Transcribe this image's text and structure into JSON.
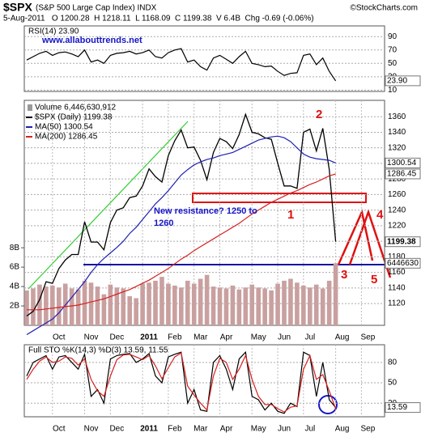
{
  "header": {
    "title": "$SPX",
    "subtitle": "(S&P 500 Large Cap Index) INDX",
    "source": "©StockCharts.com",
    "quote": "5-Aug-2011   O 1200.28  H 1218.11  L 1168.09  C 1199.38  V 6.4B  Chg -0.69 (-0.06%)"
  },
  "chart_data": [
    {
      "type": "line",
      "title": "RSI(14) 23.90",
      "annotations": [
        {
          "text": "www.allabouttrends.net",
          "color": "#1414c8"
        }
      ],
      "ylim": [
        8,
        106
      ],
      "yticks": [
        90,
        70,
        50,
        30,
        10
      ],
      "grid": true,
      "series": [
        {
          "color": "#000000",
          "end_label": "23.90",
          "values": [
            55,
            60,
            65,
            68,
            62,
            66,
            67,
            64,
            60,
            70,
            52,
            55,
            50,
            62,
            65,
            66,
            68,
            64,
            66,
            70,
            60,
            58,
            66,
            70,
            72,
            52,
            55,
            45,
            40,
            58,
            62,
            56,
            50,
            60,
            68,
            50,
            48,
            45,
            46,
            38,
            32,
            35,
            36,
            62,
            64,
            48,
            58,
            38,
            23.9,
            null,
            null,
            null,
            null,
            null,
            null,
            null
          ]
        }
      ]
    },
    {
      "type": "line",
      "categories": [
        null,
        null,
        null,
        null,
        "Oct",
        null,
        null,
        null,
        null,
        "Nov",
        null,
        null,
        null,
        "Dec",
        null,
        null,
        null,
        null,
        "2011",
        null,
        null,
        null,
        "Feb",
        null,
        null,
        null,
        "Mar",
        null,
        null,
        null,
        "Apr",
        null,
        null,
        null,
        null,
        "May",
        null,
        null,
        null,
        "Jun",
        null,
        null,
        null,
        "Jul",
        null,
        null,
        null,
        null,
        "Aug",
        null,
        null,
        null,
        "Sep",
        null,
        null,
        null
      ],
      "ylim": [
        1092,
        1381
      ],
      "yticks": [
        1360,
        1340,
        1320,
        1300,
        1280,
        1260,
        1240,
        1220,
        1200,
        1180,
        1160,
        1140,
        1120
      ],
      "grid": true,
      "y2lim": [
        0,
        23.2
      ],
      "y2ticks": [
        {
          "value": 8,
          "label": "8B"
        },
        {
          "value": 6,
          "label": "6B"
        },
        {
          "value": 4,
          "label": "4B"
        },
        {
          "value": 2,
          "label": "2B"
        }
      ],
      "annotations": [
        {
          "text": "2",
          "color": "#e01010"
        },
        {
          "text": "1",
          "color": "#e01010"
        },
        {
          "text": "3",
          "color": "#e01010"
        },
        {
          "text": "4",
          "color": "#e01010"
        },
        {
          "text": "5",
          "color": "#e01010"
        },
        {
          "text": "New resistance? 1250 to 1260",
          "color": "#1414c8"
        }
      ],
      "series": [
        {
          "name": "Volume 6,446,630,912",
          "type": "bar",
          "axis": "y2",
          "color": "#c9a0a0",
          "end_label": "6446630",
          "values": [
            3.6,
            3.8,
            4.2,
            4.0,
            4.1,
            3.9,
            4.3,
            3.8,
            3.7,
            4.6,
            4.4,
            4.0,
            3.2,
            4.2,
            3.9,
            3.8,
            3.0,
            2.8,
            4.3,
            4.4,
            4.6,
            5.0,
            4.3,
            4.1,
            3.9,
            4.6,
            4.3,
            4.8,
            5.2,
            4.0,
            3.9,
            3.8,
            4.1,
            3.7,
            3.9,
            4.2,
            3.9,
            3.8,
            3.6,
            4.3,
            4.6,
            4.8,
            4.4,
            4.1,
            3.9,
            4.2,
            3.8,
            4.6,
            6.4,
            null,
            null,
            null,
            null,
            null,
            null,
            null
          ]
        },
        {
          "name": "$SPX (Daily) 1199.38",
          "color": "#000000",
          "end_label": "1199.38",
          "values": [
            1104,
            1110,
            1125,
            1148,
            1146,
            1165,
            1176,
            1183,
            1183,
            1225,
            1199,
            1199,
            1189,
            1224,
            1240,
            1243,
            1256,
            1258,
            1271,
            1293,
            1283,
            1276,
            1310,
            1329,
            1343,
            1320,
            1321,
            1304,
            1279,
            1314,
            1332,
            1328,
            1319,
            1337,
            1363,
            1340,
            1338,
            1333,
            1331,
            1300,
            1271,
            1271,
            1268,
            1340,
            1344,
            1316,
            1345,
            1292,
            1199.38,
            null,
            null,
            null,
            null,
            null,
            null,
            null
          ]
        },
        {
          "name": "MA(50) 1300.54",
          "color": "#1f1fb4",
          "end_label": "1300.54",
          "values": [
            1080,
            1085,
            1090,
            1095,
            1100,
            1108,
            1118,
            1128,
            1138,
            1148,
            1160,
            1170,
            1178,
            1185,
            1192,
            1200,
            1210,
            1218,
            1228,
            1238,
            1248,
            1256,
            1265,
            1275,
            1285,
            1292,
            1298,
            1302,
            1305,
            1307,
            1310,
            1312,
            1314,
            1318,
            1322,
            1326,
            1330,
            1332,
            1334,
            1335,
            1333,
            1328,
            1320,
            1312,
            1308,
            1306,
            1305,
            1304,
            1300.54,
            null,
            null,
            null,
            null,
            null,
            null,
            null
          ]
        },
        {
          "name": "MA(200) 1286.45",
          "color": "#d62020",
          "end_label": "1286.45",
          "values": [
            1112,
            1112,
            1112,
            1113,
            1114,
            1115,
            1116,
            1117,
            1118,
            1120,
            1122,
            1124,
            1126,
            1129,
            1132,
            1135,
            1138,
            1142,
            1146,
            1150,
            1155,
            1160,
            1165,
            1171,
            1177,
            1182,
            1188,
            1193,
            1198,
            1203,
            1208,
            1213,
            1218,
            1223,
            1229,
            1235,
            1240,
            1245,
            1250,
            1254,
            1258,
            1262,
            1265,
            1269,
            1273,
            1276,
            1280,
            1284,
            1286.45,
            null,
            null,
            null,
            null,
            null,
            null,
            null
          ]
        }
      ]
    },
    {
      "type": "line",
      "title": "Full STO %K(14,3) %D(3) 13.59, 11.55",
      "categories": [
        null,
        null,
        null,
        null,
        "Oct",
        null,
        null,
        null,
        null,
        "Nov",
        null,
        null,
        null,
        "Dec",
        null,
        null,
        null,
        null,
        "2011",
        null,
        null,
        null,
        "Feb",
        null,
        null,
        null,
        "Mar",
        null,
        null,
        null,
        "Apr",
        null,
        null,
        null,
        null,
        "May",
        null,
        null,
        null,
        "Jun",
        null,
        null,
        null,
        "Jul",
        null,
        null,
        null,
        null,
        "Aug",
        null,
        null,
        null,
        "Sep",
        null,
        null,
        null
      ],
      "ylim": [
        0,
        106
      ],
      "yticks": [
        80,
        50,
        20
      ],
      "grid": true,
      "series": [
        {
          "color": "#000000",
          "end_label": "13.59",
          "values": [
            60,
            80,
            85,
            90,
            70,
            88,
            90,
            80,
            70,
            92,
            30,
            40,
            20,
            85,
            90,
            92,
            93,
            80,
            85,
            93,
            60,
            50,
            88,
            92,
            95,
            20,
            40,
            10,
            8,
            80,
            90,
            70,
            40,
            85,
            95,
            30,
            25,
            10,
            20,
            8,
            5,
            20,
            15,
            95,
            90,
            30,
            80,
            25,
            13.59,
            null,
            null,
            null,
            null,
            null,
            null,
            null
          ]
        },
        {
          "color": "#d62020",
          "values": [
            55,
            70,
            82,
            88,
            80,
            82,
            88,
            86,
            76,
            85,
            55,
            38,
            30,
            60,
            84,
            91,
            92,
            88,
            84,
            90,
            75,
            56,
            72,
            88,
            94,
            45,
            32,
            20,
            10,
            60,
            86,
            80,
            55,
            70,
            90,
            55,
            30,
            18,
            18,
            12,
            7,
            14,
            16,
            70,
            90,
            55,
            62,
            38,
            11.55,
            null,
            null,
            null,
            null,
            null,
            null,
            null
          ]
        }
      ]
    }
  ]
}
